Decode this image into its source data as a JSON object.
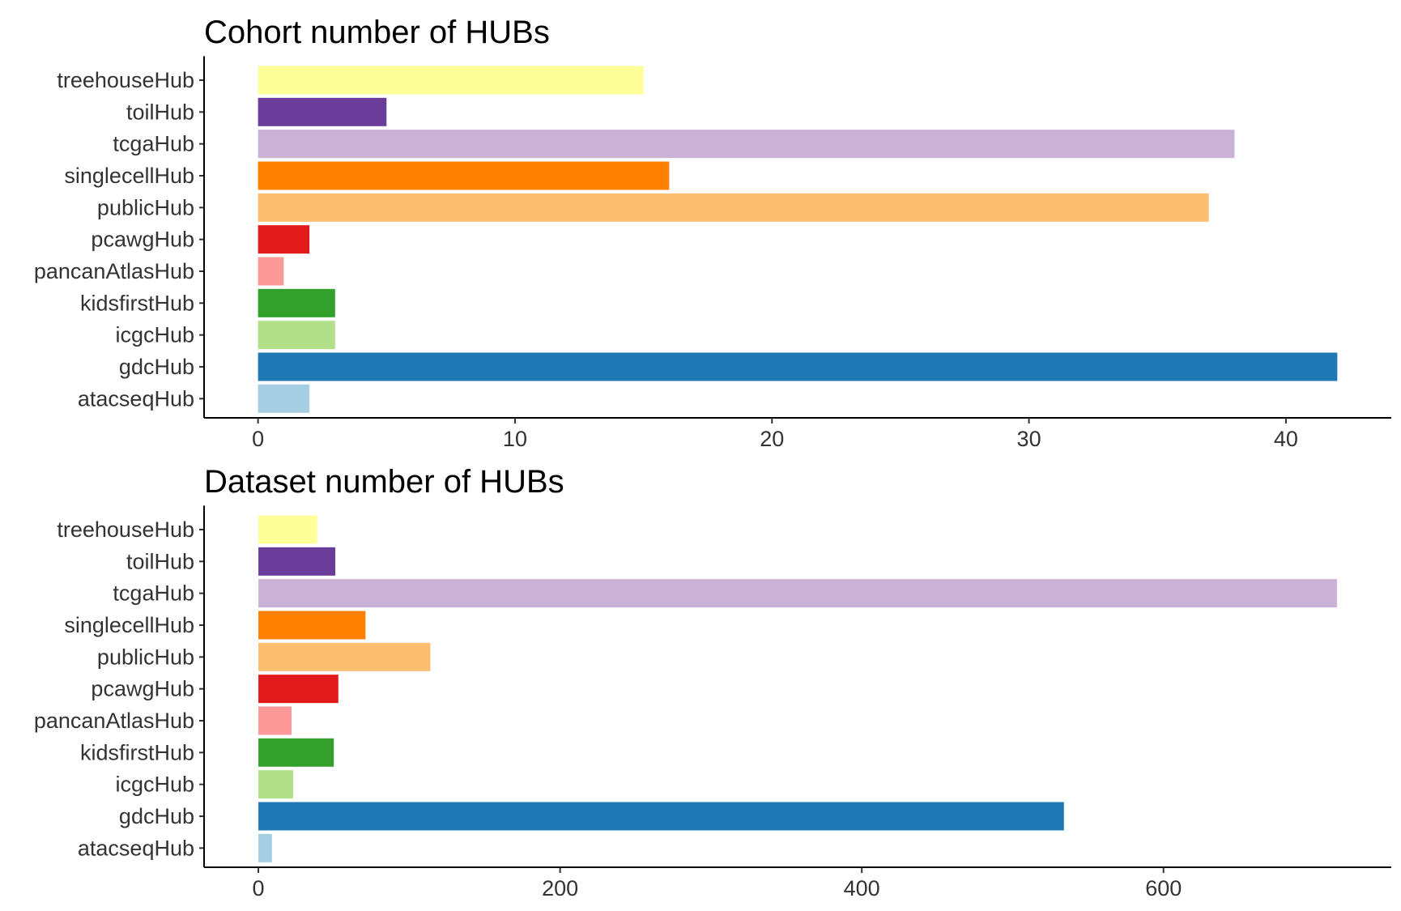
{
  "chart_data": [
    {
      "type": "bar",
      "orientation": "horizontal",
      "title": "Cohort number of HUBs",
      "xlabel": "",
      "ylabel": "",
      "categories": [
        "treehouseHub",
        "toilHub",
        "tcgaHub",
        "singlecellHub",
        "publicHub",
        "pcawgHub",
        "pancanAtlasHub",
        "kidsfirstHub",
        "icgcHub",
        "gdcHub",
        "atacseqHub"
      ],
      "values": [
        15,
        5,
        38,
        16,
        37,
        2,
        1,
        3,
        3,
        42,
        2
      ],
      "colors": [
        "#FFFF99",
        "#6A3D9A",
        "#CAB2D6",
        "#FF7F00",
        "#FDBF6F",
        "#E31A1C",
        "#FB9A99",
        "#33A02C",
        "#B2DF8A",
        "#1F78B4",
        "#A6CEE3"
      ],
      "xlim": [
        -2.1,
        44.1
      ],
      "xticks": [
        0,
        10,
        20,
        30,
        40
      ],
      "grid": false,
      "legend": "none"
    },
    {
      "type": "bar",
      "orientation": "horizontal",
      "title": "Dataset number of HUBs",
      "xlabel": "",
      "ylabel": "",
      "categories": [
        "treehouseHub",
        "toilHub",
        "tcgaHub",
        "singlecellHub",
        "publicHub",
        "pcawgHub",
        "pancanAtlasHub",
        "kidsfirstHub",
        "icgcHub",
        "gdcHub",
        "atacseqHub"
      ],
      "values": [
        39,
        51,
        715,
        71,
        114,
        53,
        22,
        50,
        23,
        534,
        9
      ],
      "colors": [
        "#FFFF99",
        "#6A3D9A",
        "#CAB2D6",
        "#FF7F00",
        "#FDBF6F",
        "#E31A1C",
        "#FB9A99",
        "#33A02C",
        "#B2DF8A",
        "#1F78B4",
        "#A6CEE3"
      ],
      "xlim": [
        -36,
        751
      ],
      "xticks": [
        0,
        200,
        400,
        600
      ],
      "grid": false,
      "legend": "none"
    }
  ]
}
